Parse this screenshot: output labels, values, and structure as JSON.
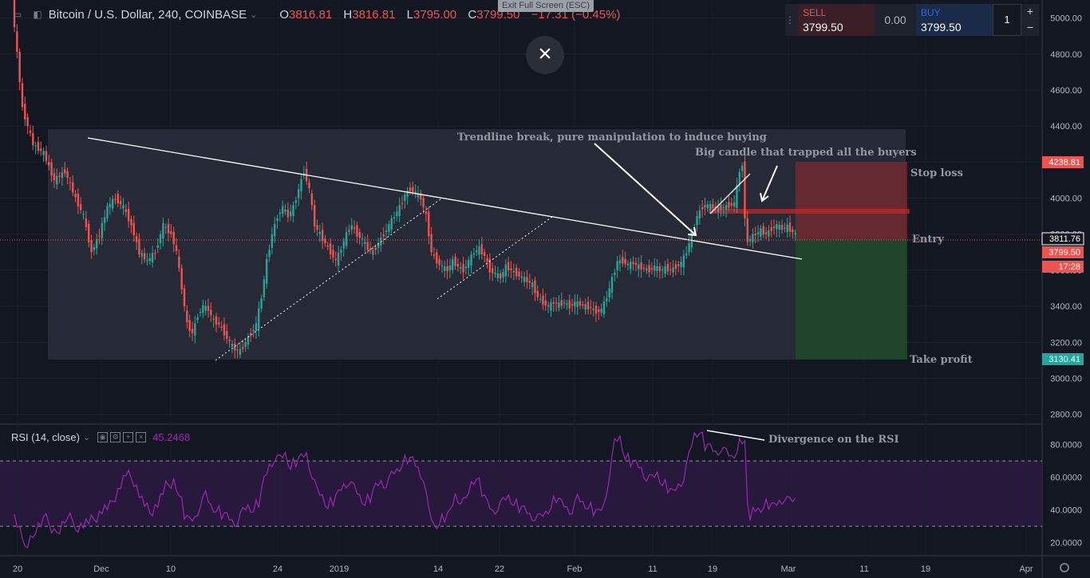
{
  "header": {
    "symbol": "Bitcoin / U.S. Dollar, 240, COINBASE",
    "o_label": "O",
    "o": "3816.81",
    "h_label": "H",
    "h": "3816.81",
    "l_label": "L",
    "l": "3795.00",
    "c_label": "C",
    "c": "3799.50",
    "change": "−17.31 (−0.45%)"
  },
  "exit_fullscreen": "Exit Full Screen (ESC)",
  "trade_panel": {
    "sell_label": "SELL",
    "sell_price": "3799.50",
    "spread": "0.00",
    "buy_label": "BUY",
    "buy_price": "3799.50",
    "quantity": "1",
    "plus": "+",
    "minus": "−"
  },
  "rsi": {
    "label": "RSI (14, close)",
    "value": "45.2468"
  },
  "chart_data": {
    "type": "candlestick",
    "price_axis": {
      "ticks": [
        2800,
        3000,
        3200,
        3400,
        3600,
        3800,
        4000,
        4200,
        4400,
        4600,
        4800,
        5000
      ],
      "range": [
        2750,
        5100
      ]
    },
    "time_axis": {
      "ticks": [
        "20",
        "Dec",
        "10",
        "24",
        "2019",
        "14",
        "22",
        "Feb",
        "11",
        "19",
        "Mar",
        "11",
        "19",
        "Apr"
      ]
    },
    "rsi_axis": {
      "ticks": [
        20,
        40,
        60,
        80
      ],
      "bands": [
        30,
        70
      ]
    },
    "price_labels": {
      "stop": "4238.81",
      "last": "3811.76",
      "current": "3799.50",
      "countdown": "17:28",
      "target": "3130.41"
    },
    "annotations": {
      "trendline_break": "Trendline break, pure manipulation to induce buying",
      "big_candle": "Big candle that trapped all the buyers",
      "stop_loss": "Stop loss",
      "entry": "Entry",
      "take_profit": "Take profit",
      "divergence": "Divergence on the RSI"
    },
    "price_path": [
      [
        0,
        5100
      ],
      [
        4,
        4500
      ],
      [
        8,
        4300
      ],
      [
        12,
        4250
      ],
      [
        16,
        4100
      ],
      [
        20,
        4150
      ],
      [
        24,
        4000
      ],
      [
        27,
        3900
      ],
      [
        30,
        3700
      ],
      [
        33,
        3800
      ],
      [
        36,
        3950
      ],
      [
        39,
        4000
      ],
      [
        42,
        3950
      ],
      [
        45,
        3850
      ],
      [
        48,
        3700
      ],
      [
        51,
        3650
      ],
      [
        54,
        3700
      ],
      [
        57,
        3850
      ],
      [
        60,
        3800
      ],
      [
        62,
        3700
      ],
      [
        64,
        3500
      ],
      [
        66,
        3300
      ],
      [
        68,
        3250
      ],
      [
        70,
        3350
      ],
      [
        72,
        3400
      ],
      [
        74,
        3380
      ],
      [
        76,
        3320
      ],
      [
        78,
        3300
      ],
      [
        80,
        3250
      ],
      [
        82,
        3200
      ],
      [
        84,
        3160
      ],
      [
        86,
        3150
      ],
      [
        88,
        3200
      ],
      [
        90,
        3250
      ],
      [
        92,
        3300
      ],
      [
        94,
        3450
      ],
      [
        96,
        3650
      ],
      [
        98,
        3800
      ],
      [
        100,
        3900
      ],
      [
        102,
        3950
      ],
      [
        104,
        3900
      ],
      [
        106,
        3950
      ],
      [
        108,
        4050
      ],
      [
        110,
        4150
      ],
      [
        112,
        4050
      ],
      [
        114,
        3850
      ],
      [
        116,
        3800
      ],
      [
        118,
        3750
      ],
      [
        120,
        3700
      ],
      [
        122,
        3650
      ],
      [
        124,
        3720
      ],
      [
        126,
        3800
      ],
      [
        128,
        3850
      ],
      [
        130,
        3800
      ],
      [
        132,
        3770
      ],
      [
        134,
        3720
      ],
      [
        136,
        3700
      ],
      [
        138,
        3750
      ],
      [
        140,
        3800
      ],
      [
        142,
        3850
      ],
      [
        144,
        3900
      ],
      [
        146,
        3950
      ],
      [
        148,
        4020
      ],
      [
        150,
        4050
      ],
      [
        152,
        4030
      ],
      [
        154,
        4000
      ],
      [
        156,
        3900
      ],
      [
        158,
        3700
      ],
      [
        160,
        3650
      ],
      [
        162,
        3620
      ],
      [
        164,
        3600
      ],
      [
        166,
        3650
      ],
      [
        168,
        3620
      ],
      [
        170,
        3600
      ],
      [
        172,
        3650
      ],
      [
        174,
        3700
      ],
      [
        176,
        3720
      ],
      [
        178,
        3680
      ],
      [
        180,
        3600
      ],
      [
        182,
        3580
      ],
      [
        184,
        3560
      ],
      [
        186,
        3620
      ],
      [
        188,
        3600
      ],
      [
        190,
        3580
      ],
      [
        192,
        3560
      ],
      [
        194,
        3540
      ],
      [
        196,
        3520
      ],
      [
        198,
        3450
      ],
      [
        200,
        3420
      ],
      [
        202,
        3400
      ],
      [
        204,
        3420
      ],
      [
        206,
        3410
      ],
      [
        208,
        3420
      ],
      [
        210,
        3400
      ],
      [
        212,
        3420
      ],
      [
        214,
        3410
      ],
      [
        216,
        3400
      ],
      [
        218,
        3390
      ],
      [
        220,
        3370
      ],
      [
        222,
        3380
      ],
      [
        224,
        3450
      ],
      [
        226,
        3550
      ],
      [
        228,
        3650
      ],
      [
        230,
        3650
      ],
      [
        232,
        3630
      ],
      [
        234,
        3640
      ],
      [
        236,
        3620
      ],
      [
        238,
        3610
      ],
      [
        240,
        3600
      ],
      [
        242,
        3620
      ],
      [
        244,
        3600
      ],
      [
        246,
        3610
      ],
      [
        248,
        3600
      ],
      [
        250,
        3620
      ],
      [
        252,
        3640
      ],
      [
        254,
        3700
      ],
      [
        256,
        3800
      ],
      [
        258,
        3900
      ],
      [
        260,
        3950
      ],
      [
        262,
        3960
      ],
      [
        264,
        3950
      ],
      [
        266,
        3940
      ],
      [
        268,
        3950
      ],
      [
        270,
        3960
      ],
      [
        272,
        3970
      ],
      [
        274,
        4150
      ],
      [
        275,
        4180
      ],
      [
        276,
        3900
      ],
      [
        277,
        3750
      ],
      [
        278,
        3780
      ],
      [
        280,
        3800
      ],
      [
        282,
        3820
      ],
      [
        284,
        3800
      ],
      [
        286,
        3830
      ],
      [
        288,
        3850
      ],
      [
        290,
        3830
      ],
      [
        292,
        3840
      ],
      [
        294,
        3810
      ],
      [
        295,
        3800
      ]
    ],
    "rsi_path": [
      [
        0,
        35
      ],
      [
        4,
        18
      ],
      [
        8,
        28
      ],
      [
        12,
        34
      ],
      [
        16,
        25
      ],
      [
        20,
        36
      ],
      [
        24,
        30
      ],
      [
        27,
        32
      ],
      [
        30,
        34
      ],
      [
        33,
        40
      ],
      [
        36,
        42
      ],
      [
        39,
        52
      ],
      [
        42,
        62
      ],
      [
        45,
        58
      ],
      [
        48,
        46
      ],
      [
        51,
        38
      ],
      [
        54,
        44
      ],
      [
        57,
        54
      ],
      [
        60,
        58
      ],
      [
        62,
        50
      ],
      [
        64,
        38
      ],
      [
        66,
        33
      ],
      [
        68,
        36
      ],
      [
        70,
        44
      ],
      [
        72,
        48
      ],
      [
        74,
        42
      ],
      [
        76,
        40
      ],
      [
        78,
        38
      ],
      [
        80,
        36
      ],
      [
        82,
        34
      ],
      [
        84,
        33
      ],
      [
        86,
        38
      ],
      [
        88,
        42
      ],
      [
        90,
        40
      ],
      [
        92,
        45
      ],
      [
        94,
        58
      ],
      [
        96,
        68
      ],
      [
        98,
        72
      ],
      [
        100,
        70
      ],
      [
        102,
        74
      ],
      [
        104,
        66
      ],
      [
        106,
        70
      ],
      [
        108,
        72
      ],
      [
        110,
        75
      ],
      [
        112,
        62
      ],
      [
        114,
        50
      ],
      [
        116,
        48
      ],
      [
        118,
        42
      ],
      [
        120,
        46
      ],
      [
        122,
        50
      ],
      [
        124,
        56
      ],
      [
        126,
        58
      ],
      [
        128,
        52
      ],
      [
        130,
        48
      ],
      [
        132,
        44
      ],
      [
        134,
        48
      ],
      [
        136,
        54
      ],
      [
        138,
        58
      ],
      [
        140,
        56
      ],
      [
        142,
        60
      ],
      [
        144,
        64
      ],
      [
        146,
        68
      ],
      [
        148,
        72
      ],
      [
        150,
        70
      ],
      [
        152,
        66
      ],
      [
        154,
        60
      ],
      [
        156,
        38
      ],
      [
        158,
        30
      ],
      [
        160,
        32
      ],
      [
        162,
        36
      ],
      [
        164,
        38
      ],
      [
        166,
        50
      ],
      [
        168,
        46
      ],
      [
        170,
        44
      ],
      [
        172,
        56
      ],
      [
        174,
        60
      ],
      [
        176,
        52
      ],
      [
        178,
        44
      ],
      [
        180,
        40
      ],
      [
        182,
        42
      ],
      [
        184,
        44
      ],
      [
        186,
        48
      ],
      [
        188,
        44
      ],
      [
        190,
        42
      ],
      [
        192,
        40
      ],
      [
        194,
        38
      ],
      [
        196,
        36
      ],
      [
        198,
        34
      ],
      [
        200,
        38
      ],
      [
        202,
        42
      ],
      [
        204,
        48
      ],
      [
        206,
        44
      ],
      [
        208,
        42
      ],
      [
        210,
        40
      ],
      [
        212,
        46
      ],
      [
        214,
        44
      ],
      [
        216,
        42
      ],
      [
        218,
        40
      ],
      [
        220,
        38
      ],
      [
        222,
        44
      ],
      [
        224,
        62
      ],
      [
        226,
        80
      ],
      [
        228,
        84
      ],
      [
        230,
        72
      ],
      [
        232,
        70
      ],
      [
        234,
        68
      ],
      [
        236,
        66
      ],
      [
        238,
        60
      ],
      [
        240,
        58
      ],
      [
        242,
        62
      ],
      [
        244,
        56
      ],
      [
        246,
        54
      ],
      [
        248,
        50
      ],
      [
        250,
        56
      ],
      [
        252,
        60
      ],
      [
        254,
        72
      ],
      [
        256,
        86
      ],
      [
        258,
        88
      ],
      [
        260,
        80
      ],
      [
        262,
        78
      ],
      [
        264,
        76
      ],
      [
        266,
        78
      ],
      [
        268,
        74
      ],
      [
        270,
        72
      ],
      [
        272,
        76
      ],
      [
        274,
        84
      ],
      [
        275,
        80
      ],
      [
        276,
        44
      ],
      [
        277,
        36
      ],
      [
        278,
        38
      ],
      [
        280,
        40
      ],
      [
        282,
        42
      ],
      [
        284,
        44
      ],
      [
        286,
        42
      ],
      [
        288,
        46
      ],
      [
        290,
        48
      ],
      [
        292,
        44
      ],
      [
        294,
        46
      ],
      [
        295,
        45
      ]
    ]
  }
}
